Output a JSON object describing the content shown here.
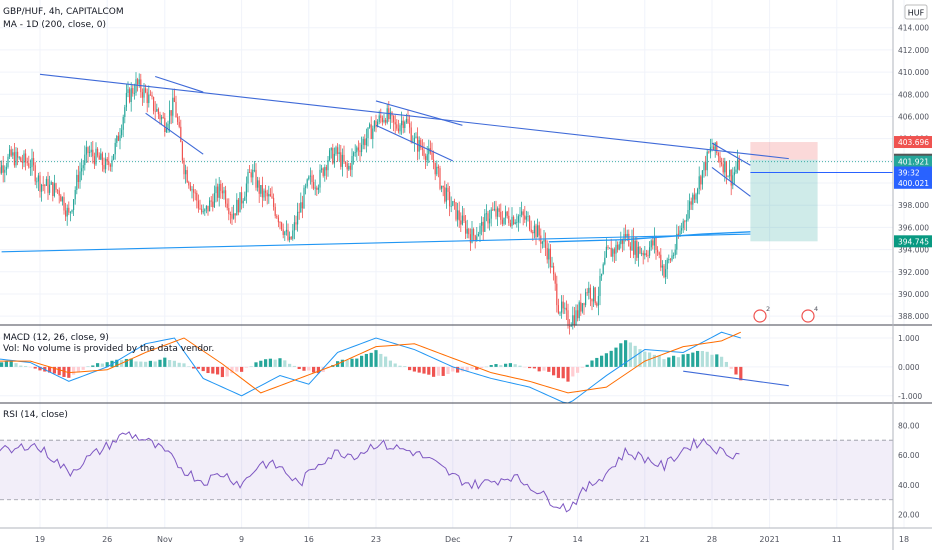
{
  "chart_data": {
    "type": "candlestick",
    "symbol": "GBP/HUF, 4h, CAPITALCOM",
    "currency": "HUF",
    "ma_label": "MA - 1D (200, close, 0)",
    "x_ticks": [
      "19",
      "26",
      "Nov",
      "9",
      "16",
      "23",
      "Dec",
      "7",
      "14",
      "21",
      "28",
      "2021",
      "11",
      "18"
    ],
    "x_tick_ticks": [
      19,
      26,
      32,
      40,
      47,
      54,
      62,
      68,
      75,
      82,
      89,
      95,
      102,
      109
    ],
    "price_ticks": [
      414,
      412,
      410,
      408,
      406,
      404,
      402,
      400,
      398,
      396,
      394,
      392,
      390,
      388
    ],
    "price_ylim": [
      387.2,
      416.5
    ],
    "close_path": [
      [
        14,
        400.5
      ],
      [
        15,
        401.5
      ],
      [
        16,
        402.4
      ],
      [
        17,
        402.0
      ],
      [
        18,
        401.8
      ],
      [
        19,
        400.0
      ],
      [
        20,
        399.6
      ],
      [
        21,
        399.3
      ],
      [
        22,
        397.0
      ],
      [
        23,
        400.7
      ],
      [
        24,
        402.8
      ],
      [
        25,
        402.2
      ],
      [
        26,
        401.4
      ],
      [
        27,
        403.6
      ],
      [
        28,
        407.5
      ],
      [
        29,
        408.9
      ],
      [
        30,
        408.0
      ],
      [
        31,
        406.7
      ],
      [
        32,
        405.4
      ],
      [
        33,
        407.2
      ],
      [
        34,
        401.5
      ],
      [
        35,
        399.2
      ],
      [
        36,
        397.0
      ],
      [
        37,
        398.6
      ],
      [
        38,
        399.6
      ],
      [
        39,
        397.2
      ],
      [
        40,
        398.6
      ],
      [
        41,
        401.1
      ],
      [
        42,
        399.1
      ],
      [
        43,
        398.5
      ],
      [
        44,
        396.7
      ],
      [
        45,
        394.5
      ],
      [
        46,
        397.5
      ],
      [
        47,
        400.1
      ],
      [
        48,
        400.2
      ],
      [
        49,
        402.3
      ],
      [
        50,
        402.6
      ],
      [
        51,
        401.1
      ],
      [
        52,
        403.1
      ],
      [
        53,
        404.1
      ],
      [
        54,
        405.4
      ],
      [
        55,
        406.2
      ],
      [
        56,
        405.0
      ],
      [
        57,
        405.9
      ],
      [
        58,
        403.7
      ],
      [
        59,
        403.0
      ],
      [
        60,
        401.9
      ],
      [
        61,
        399.3
      ],
      [
        62,
        397.8
      ],
      [
        63,
        396.4
      ],
      [
        64,
        395.2
      ],
      [
        65,
        396.0
      ],
      [
        66,
        397.4
      ],
      [
        67,
        396.9
      ],
      [
        68,
        396.9
      ],
      [
        69,
        397.0
      ],
      [
        70,
        396.5
      ],
      [
        71,
        395.3
      ],
      [
        72,
        393.6
      ],
      [
        73,
        389.0
      ],
      [
        74,
        387.6
      ],
      [
        75,
        388.2
      ],
      [
        76,
        390.5
      ],
      [
        77,
        389.5
      ],
      [
        78,
        393.5
      ],
      [
        79,
        394.1
      ],
      [
        80,
        395.3
      ],
      [
        81,
        394.1
      ],
      [
        82,
        393.8
      ],
      [
        83,
        394.6
      ],
      [
        84,
        392.1
      ],
      [
        85,
        393.7
      ],
      [
        86,
        396.5
      ],
      [
        87,
        398.8
      ],
      [
        88,
        401.0
      ],
      [
        89,
        403.3
      ],
      [
        90,
        402.0
      ],
      [
        91,
        400.5
      ],
      [
        92,
        401.9
      ]
    ],
    "price_labels": [
      {
        "text": "403.696",
        "value": 403.696,
        "color": "#ef5350"
      },
      {
        "text": "402.101",
        "value": 402.101,
        "color": "#555555"
      },
      {
        "text": "401.921",
        "value": 401.921,
        "color": "#26a69a"
      },
      {
        "text": "39:32",
        "value": 400.95,
        "color": "#2962ff"
      },
      {
        "text": "400.021",
        "value": 400.021,
        "color": "#2962ff"
      },
      {
        "text": "394.745",
        "value": 394.745,
        "color": "#089981"
      }
    ],
    "trendlines": [
      {
        "from": [
          19,
          409.8
        ],
        "to": [
          97,
          402.2
        ],
        "color": "#3f6ad8"
      },
      {
        "from": [
          31,
          409.6
        ],
        "to": [
          36,
          408.2
        ],
        "color": "#3f6ad8"
      },
      {
        "from": [
          30,
          406.3
        ],
        "to": [
          36,
          402.6
        ],
        "color": "#3f6ad8"
      },
      {
        "from": [
          54,
          407.4
        ],
        "to": [
          63,
          405.2
        ],
        "color": "#3f6ad8"
      },
      {
        "from": [
          54,
          405.2
        ],
        "to": [
          62,
          402.0
        ],
        "color": "#3f6ad8"
      },
      {
        "from": [
          89,
          403.6
        ],
        "to": [
          93,
          401.6
        ],
        "color": "#3f6ad8"
      },
      {
        "from": [
          89,
          401.4
        ],
        "to": [
          93,
          398.8
        ],
        "color": "#3f6ad8"
      },
      {
        "from": [
          15,
          393.8
        ],
        "to": [
          93,
          395.4
        ],
        "color": "#2196f3"
      }
    ],
    "ma_line": [
      [
        72,
        394.7
      ],
      [
        80,
        394.9
      ],
      [
        88,
        395.4
      ],
      [
        93,
        395.6
      ]
    ],
    "position": {
      "from": 93,
      "to": 100,
      "entry": 402.101,
      "stop": 403.696,
      "target": 394.745
    },
    "event_markers": [
      {
        "x": 94,
        "label": "2"
      },
      {
        "x": 99,
        "label": "4"
      }
    ],
    "macd": {
      "label": "MACD (12, 26, close, 9)",
      "note": "Vol: No volume is provided by the data vendor.",
      "ticks": [
        1.0,
        0.0,
        -1.0
      ],
      "tick_labels": [
        "1.000",
        "0.000",
        "-1.000"
      ],
      "ylim": [
        -1.25,
        1.45
      ],
      "hist_path": [
        [
          14,
          0.1
        ],
        [
          16,
          0.2
        ],
        [
          18,
          -0.05
        ],
        [
          20,
          -0.2
        ],
        [
          22,
          -0.4
        ],
        [
          24,
          0.05
        ],
        [
          26,
          0.15
        ],
        [
          28,
          0.3
        ],
        [
          30,
          0.15
        ],
        [
          32,
          0.3
        ],
        [
          34,
          0.1
        ],
        [
          36,
          -0.15
        ],
        [
          38,
          -0.35
        ],
        [
          40,
          -0.15
        ],
        [
          42,
          0.25
        ],
        [
          44,
          0.3
        ],
        [
          46,
          -0.05
        ],
        [
          48,
          -0.25
        ],
        [
          50,
          0.2
        ],
        [
          52,
          0.3
        ],
        [
          54,
          0.55
        ],
        [
          56,
          0.15
        ],
        [
          58,
          -0.15
        ],
        [
          60,
          -0.35
        ],
        [
          62,
          -0.2
        ],
        [
          64,
          -0.1
        ],
        [
          66,
          0.05
        ],
        [
          68,
          0.1
        ],
        [
          70,
          -0.05
        ],
        [
          72,
          -0.2
        ],
        [
          74,
          -0.5
        ],
        [
          76,
          0.1
        ],
        [
          78,
          0.45
        ],
        [
          80,
          0.95
        ],
        [
          82,
          0.55
        ],
        [
          84,
          0.3
        ],
        [
          86,
          0.4
        ],
        [
          88,
          0.55
        ],
        [
          90,
          0.35
        ],
        [
          92,
          -0.45
        ]
      ],
      "macd_path": [
        [
          14,
          0.3
        ],
        [
          18,
          0.15
        ],
        [
          22,
          -0.5
        ],
        [
          26,
          0.0
        ],
        [
          30,
          0.8
        ],
        [
          33,
          1.0
        ],
        [
          36,
          -0.4
        ],
        [
          40,
          -1.0
        ],
        [
          44,
          -0.3
        ],
        [
          47,
          -0.6
        ],
        [
          50,
          0.5
        ],
        [
          54,
          1.0
        ],
        [
          58,
          0.6
        ],
        [
          62,
          0.0
        ],
        [
          66,
          -0.4
        ],
        [
          70,
          -0.7
        ],
        [
          74,
          -1.3
        ],
        [
          78,
          -0.3
        ],
        [
          82,
          0.6
        ],
        [
          86,
          0.5
        ],
        [
          90,
          1.2
        ],
        [
          92,
          1.0
        ]
      ],
      "signal_path": [
        [
          14,
          0.2
        ],
        [
          18,
          0.2
        ],
        [
          22,
          -0.2
        ],
        [
          26,
          -0.1
        ],
        [
          30,
          0.5
        ],
        [
          34,
          1.0
        ],
        [
          38,
          0.1
        ],
        [
          42,
          -0.9
        ],
        [
          46,
          -0.4
        ],
        [
          50,
          0.1
        ],
        [
          54,
          0.7
        ],
        [
          58,
          0.8
        ],
        [
          62,
          0.3
        ],
        [
          66,
          -0.2
        ],
        [
          70,
          -0.5
        ],
        [
          74,
          -0.9
        ],
        [
          78,
          -0.7
        ],
        [
          82,
          0.2
        ],
        [
          86,
          0.7
        ],
        [
          90,
          0.9
        ],
        [
          92,
          1.2
        ]
      ],
      "trendline": {
        "from": [
          86,
          -0.15
        ],
        "to": [
          97,
          -0.65
        ]
      }
    },
    "rsi": {
      "label": "RSI (14, close)",
      "ticks": [
        80,
        60,
        40,
        20
      ],
      "tick_labels": [
        "80.00",
        "60.00",
        "40.00",
        "20.00"
      ],
      "ylim": [
        11,
        95
      ],
      "band": [
        70,
        30
      ],
      "path": [
        [
          14,
          65
        ],
        [
          16,
          62
        ],
        [
          18,
          68
        ],
        [
          20,
          60
        ],
        [
          22,
          48
        ],
        [
          24,
          58
        ],
        [
          26,
          66
        ],
        [
          28,
          75
        ],
        [
          30,
          70
        ],
        [
          32,
          62
        ],
        [
          34,
          50
        ],
        [
          36,
          42
        ],
        [
          38,
          48
        ],
        [
          40,
          40
        ],
        [
          42,
          55
        ],
        [
          44,
          52
        ],
        [
          46,
          40
        ],
        [
          48,
          55
        ],
        [
          50,
          62
        ],
        [
          52,
          60
        ],
        [
          54,
          68
        ],
        [
          56,
          65
        ],
        [
          58,
          62
        ],
        [
          60,
          55
        ],
        [
          62,
          46
        ],
        [
          64,
          40
        ],
        [
          66,
          42
        ],
        [
          68,
          46
        ],
        [
          70,
          40
        ],
        [
          72,
          30
        ],
        [
          74,
          24
        ],
        [
          76,
          38
        ],
        [
          78,
          48
        ],
        [
          80,
          62
        ],
        [
          82,
          58
        ],
        [
          84,
          52
        ],
        [
          86,
          64
        ],
        [
          88,
          70
        ],
        [
          90,
          62
        ],
        [
          92,
          60
        ]
      ]
    }
  },
  "colors": {
    "up": "#26a69a",
    "down": "#ef5350",
    "trend": "#3f6ad8",
    "ma": "#2196f3",
    "rsi": "#7e57c2",
    "macd": "#2196f3",
    "signal": "#ff6d00"
  }
}
